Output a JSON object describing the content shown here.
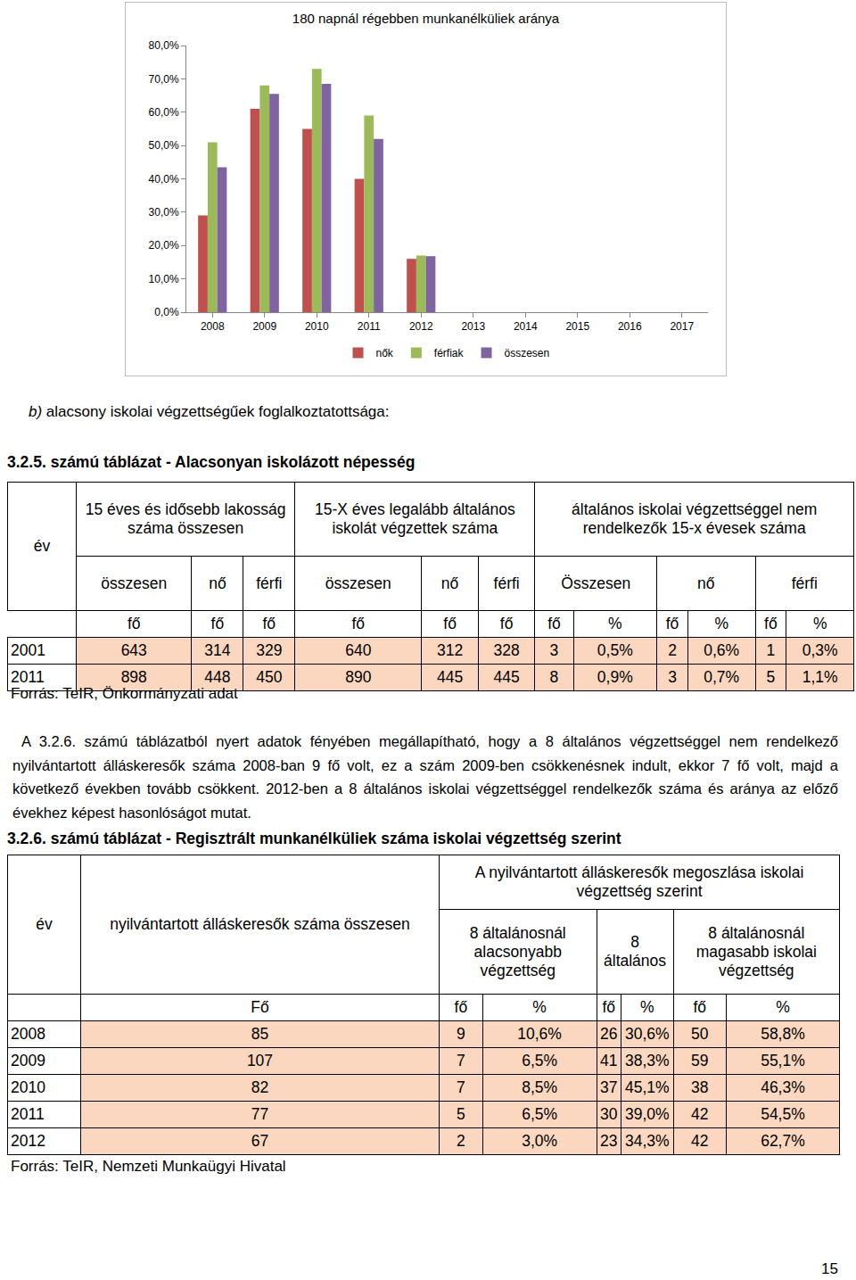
{
  "chart_data": {
    "type": "bar",
    "title": "180 napnál régebben munkanélküliek aránya",
    "categories": [
      "2008",
      "2009",
      "2010",
      "2011",
      "2012",
      "2013",
      "2014",
      "2015",
      "2016",
      "2017"
    ],
    "series": [
      {
        "name": "nők",
        "color": "#c0504d",
        "values": [
          29,
          61,
          55,
          40,
          16,
          null,
          null,
          null,
          null,
          null
        ]
      },
      {
        "name": "férfiak",
        "color": "#9bbb59",
        "values": [
          51,
          68,
          73,
          59,
          17,
          null,
          null,
          null,
          null,
          null
        ]
      },
      {
        "name": "összesen",
        "color": "#8064a2",
        "values": [
          43.5,
          65.5,
          68.5,
          52,
          16.8,
          null,
          null,
          null,
          null,
          null
        ]
      }
    ],
    "ylim": [
      0,
      80
    ],
    "yticks": [
      {
        "value": 0,
        "label": "0,0%"
      },
      {
        "value": 10,
        "label": "10,0%"
      },
      {
        "value": 20,
        "label": "20,0%"
      },
      {
        "value": 30,
        "label": "30,0%"
      },
      {
        "value": 40,
        "label": "40,0%"
      },
      {
        "value": 50,
        "label": "50,0%"
      },
      {
        "value": 60,
        "label": "60,0%"
      },
      {
        "value": 70,
        "label": "70,0%"
      },
      {
        "value": 80,
        "label": "80,0%"
      }
    ],
    "grid": false,
    "legend": "bottom"
  },
  "section": {
    "label": "b)",
    "title": "alacsony iskolai végzettségűek foglalkoztatottsága:"
  },
  "table1": {
    "caption": "3.2.5. számú táblázat - Alacsonyan iskolázott népesség",
    "year_header": "év",
    "groups": [
      {
        "label": "15 éves és idősebb lakosság száma összesen",
        "sub": [
          "összesen",
          "nő",
          "férfi"
        ]
      },
      {
        "label": "15-X éves legalább általános iskolát végzettek száma",
        "sub": [
          "összesen",
          "nő",
          "férfi"
        ]
      },
      {
        "label": "általános iskolai végzettséggel nem rendelkezők 15-x évesek száma",
        "sub": [
          "Összesen",
          "nő",
          "férfi"
        ]
      }
    ],
    "units": [
      "fő",
      "fő",
      "fő",
      "fő",
      "fő",
      "fő",
      "fő",
      "%",
      "fő",
      "%",
      "fő",
      "%"
    ],
    "rows": [
      [
        "2001",
        "643",
        "314",
        "329",
        "640",
        "312",
        "328",
        "3",
        "0,5%",
        "2",
        "0,6%",
        "1",
        "0,3%"
      ],
      [
        "2011",
        "898",
        "448",
        "450",
        "890",
        "445",
        "445",
        "8",
        "0,9%",
        "3",
        "0,7%",
        "5",
        "1,1%"
      ]
    ],
    "source": "Forrás: TeIR, Önkormányzati adat"
  },
  "paragraph": "A 3.2.6. számú táblázatból nyert adatok fényében megállapítható, hogy a 8 általános végzettséggel nem rendelkező nyilvántartott álláskeresők száma 2008-ban 9 fő volt, ez a szám 2009-ben csökkenésnek indult, ekkor 7 fő volt, majd a következő években tovább csökkent. 2012-ben a 8 általános iskolai végzettséggel rendelkezők száma és aránya az előző évekhez képest hasonlóságot mutat.",
  "table2": {
    "caption": "3.2.6. számú táblázat - Regisztrált munkanélküliek száma iskolai végzettség szerint",
    "year_header": "év",
    "total_header": "nyilvántartott álláskeresők száma összesen",
    "group_header": "A nyilvántartott álláskeresők megoszlása iskolai végzettség szerint",
    "sub": [
      "8 általánosnál alacsonyabb végzettség",
      "8 általános",
      "8 általánosnál magasabb iskolai végzettség"
    ],
    "units": [
      "Fő",
      "fő",
      "%",
      "fő",
      "%",
      "fő",
      "%"
    ],
    "rows": [
      [
        "2008",
        "85",
        "9",
        "10,6%",
        "26",
        "30,6%",
        "50",
        "58,8%"
      ],
      [
        "2009",
        "107",
        "7",
        "6,5%",
        "41",
        "38,3%",
        "59",
        "55,1%"
      ],
      [
        "2010",
        "82",
        "7",
        "8,5%",
        "37",
        "45,1%",
        "38",
        "46,3%"
      ],
      [
        "2011",
        "77",
        "5",
        "6,5%",
        "30",
        "39,0%",
        "42",
        "54,5%"
      ],
      [
        "2012",
        "67",
        "2",
        "3,0%",
        "23",
        "34,3%",
        "42",
        "62,7%"
      ]
    ],
    "source": "Forrás: TeIR, Nemzeti Munkaügyi Hivatal"
  },
  "page_number": "15"
}
